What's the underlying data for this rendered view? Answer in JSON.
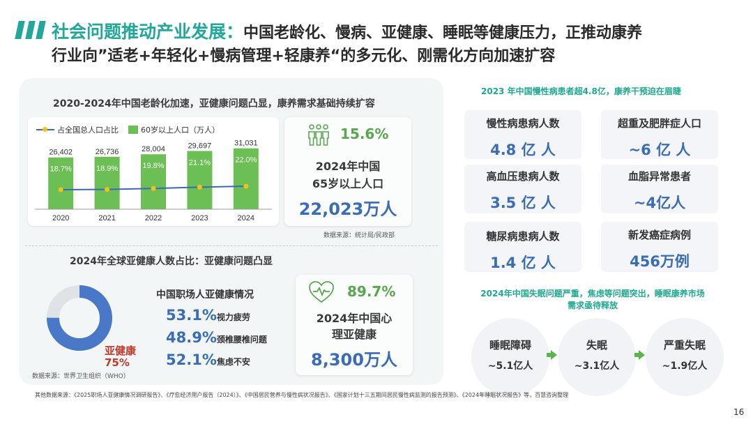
{
  "header": {
    "highlight": "社会问题推动产业发展：",
    "line1_rest": "中国老龄化、慢病、亚健康、睡眠等健康压力，正推动康养",
    "line2": "行业向”适老+年轻化+慢病管理+轻康养“的多元化、刚需化方向加速扩容"
  },
  "aging_section": {
    "title": "2020-2024年中国老龄化加速，亚健康问题凸显，康养需求基础持续扩容",
    "legend_line": "占全国总人口占比",
    "legend_bar": "60岁以上人口（万人）"
  },
  "chart_data": {
    "type": "bar",
    "title": "2020-2024年中国老龄化加速，亚健康问题凸显，康养需求基础持续扩容",
    "categories": [
      "2020",
      "2021",
      "2022",
      "2023",
      "2024"
    ],
    "series": [
      {
        "name": "60岁以上人口（万人）",
        "type": "bar",
        "values": [
          26402,
          26736,
          28004,
          29697,
          31031
        ],
        "labels": [
          "26,402",
          "26,736",
          "28,004",
          "29,697",
          "31,031"
        ]
      },
      {
        "name": "占全国总人口占比",
        "type": "line",
        "values": [
          18.7,
          18.9,
          19.8,
          21.1,
          22.0
        ],
        "labels": [
          "18.7%",
          "18.9%",
          "19.8%",
          "21.1%",
          "22.0%"
        ]
      }
    ],
    "bar_ylim": [
      0,
      32000
    ],
    "line_ylim": [
      0,
      60
    ],
    "colors": {
      "bar": "#6cbf55",
      "line": "#3b68b8",
      "dot": "#f2c21a"
    }
  },
  "elderly_card": {
    "pct": "15.6%",
    "label_line1": "2024年中国",
    "label_line2": "65岁以上人口",
    "value": "22,023万人",
    "source": "数据来源：统计局/民政部"
  },
  "subhealth_section": {
    "title": "2024年全球亚健康人数占比：亚健康问题凸显",
    "donut_label": "亚健康",
    "donut_value": "75%",
    "donut_fraction": 0.75,
    "source": "数据来源：世界卫生组织（WHO）",
    "workplace_title": "中国职场人亚健康情况",
    "items": [
      {
        "pct": "53.1%",
        "label": "视力疲劳"
      },
      {
        "pct": "48.9%",
        "label": "颈椎腰椎问题"
      },
      {
        "pct": "52.1%",
        "label": "焦虑不安"
      }
    ]
  },
  "mental_card": {
    "pct": "89.7%",
    "label_line1": "2024年中国心",
    "label_line2": "理亚健康",
    "value": "8,300万人"
  },
  "chronic": {
    "heading": "2023 年中国慢性病患者超4.8亿，康养干预迫在眉睫",
    "cards": [
      {
        "label": "慢性病患病人数",
        "value": "4.8 亿 人"
      },
      {
        "label": "超重及肥胖症人口",
        "value": "~6 亿 人"
      },
      {
        "label": "高血压患病人数",
        "value": "3.5 亿 人"
      },
      {
        "label": "血脂异常患者",
        "value": "~4亿人"
      },
      {
        "label": "糖尿病患病人数",
        "value": "1.4 亿 人"
      },
      {
        "label": "新发癌症病例",
        "value": "456万例"
      }
    ]
  },
  "sleep": {
    "heading_line1": "2024年中国失眠问题严重，焦虑等问题突出，睡眠康养市场",
    "heading_line2": "需求亟待释放",
    "steps": [
      {
        "label": "睡眠障碍",
        "value": "~5.1亿人"
      },
      {
        "label": "失眠",
        "value": "~3.1亿人"
      },
      {
        "label": "严重失眠",
        "value": "~1.9亿人"
      }
    ]
  },
  "footer": {
    "sources": "其他数据来源：《2025职场人亚健康情况调研报告》、《疗愈经济用户报告（2024）》、《中国居民营养与慢性病状况报告》、《国家计划十三五期间居民慢性病监测的报告预测》、《2024年睡眠状况报告》等，百慧咨询整理",
    "page_number": "16"
  }
}
